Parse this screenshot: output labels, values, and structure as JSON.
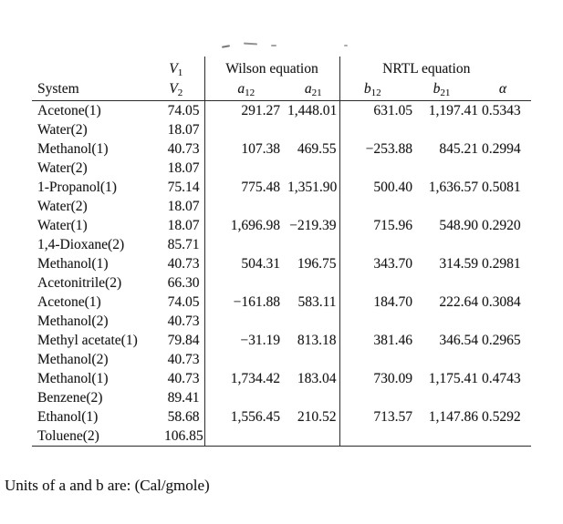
{
  "document": {
    "footer": "Units of a and b are: (Cal/gmole)"
  },
  "table": {
    "headers": {
      "system": "System",
      "v1": {
        "base": "V",
        "sub": "1"
      },
      "v2": {
        "base": "V",
        "sub": "2"
      },
      "wilson": "Wilson equation",
      "nrtl": "NRTL equation",
      "a12": {
        "base": "a",
        "sub": "12"
      },
      "a21": {
        "base": "a",
        "sub": "21"
      },
      "b12": {
        "base": "b",
        "sub": "12"
      },
      "b21": {
        "base": "b",
        "sub": "21"
      },
      "alpha": "α"
    },
    "rows": [
      {
        "component1": "Acetone(1)",
        "component2": "Water(2)",
        "v1": "74.05",
        "v2": "18.07",
        "a12": "291.27",
        "a21": "1,448.01",
        "b12": "631.05",
        "b21": "1,197.41",
        "alpha": "0.5343"
      },
      {
        "component1": "Methanol(1)",
        "component2": "Water(2)",
        "v1": "40.73",
        "v2": "18.07",
        "a12": "107.38",
        "a21": "469.55",
        "b12": "−253.88",
        "b21": "845.21",
        "alpha": "0.2994"
      },
      {
        "component1": "1-Propanol(1)",
        "component2": "Water(2)",
        "v1": "75.14",
        "v2": "18.07",
        "a12": "775.48",
        "a21": "1,351.90",
        "b12": "500.40",
        "b21": "1,636.57",
        "alpha": "0.5081"
      },
      {
        "component1": "Water(1)",
        "component2": "1,4-Dioxane(2)",
        "v1": "18.07",
        "v2": "85.71",
        "a12": "1,696.98",
        "a21": "−219.39",
        "b12": "715.96",
        "b21": "548.90",
        "alpha": "0.2920"
      },
      {
        "component1": "Methanol(1)",
        "component2": "Acetonitrile(2)",
        "v1": "40.73",
        "v2": "66.30",
        "a12": "504.31",
        "a21": "196.75",
        "b12": "343.70",
        "b21": "314.59",
        "alpha": "0.2981"
      },
      {
        "component1": "Acetone(1)",
        "component2": "Methanol(2)",
        "v1": "74.05",
        "v2": "40.73",
        "a12": "−161.88",
        "a21": "583.11",
        "b12": "184.70",
        "b21": "222.64",
        "alpha": "0.3084"
      },
      {
        "component1": "Methyl acetate(1)",
        "component2": "Methanol(2)",
        "v1": "79.84",
        "v2": "40.73",
        "a12": "−31.19",
        "a21": "813.18",
        "b12": "381.46",
        "b21": "346.54",
        "alpha": "0.2965"
      },
      {
        "component1": "Methanol(1)",
        "component2": "Benzene(2)",
        "v1": "40.73",
        "v2": "89.41",
        "a12": "1,734.42",
        "a21": "183.04",
        "b12": "730.09",
        "b21": "1,175.41",
        "alpha": "0.4743"
      },
      {
        "component1": "Ethanol(1)",
        "component2": "Toluene(2)",
        "v1": "58.68",
        "v2": "106.85",
        "a12": "1,556.45",
        "a21": "210.52",
        "b12": "713.57",
        "b21": "1,147.86",
        "alpha": "0.5292"
      }
    ]
  }
}
